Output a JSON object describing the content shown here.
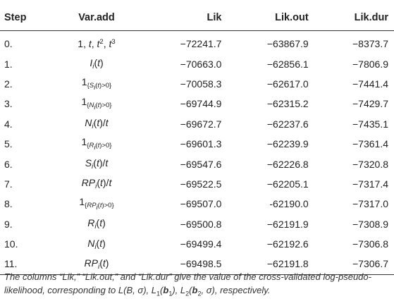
{
  "table": {
    "headers": {
      "step": "Step",
      "var_add": "Var.add",
      "lik": "Lik",
      "lik_out": "Lik.out",
      "lik_dur": "Lik.dur"
    },
    "rows": [
      {
        "step": "0.",
        "var_label": "1, t, t², t³",
        "lik": "−72241.7",
        "lik_out": "−63867.9",
        "lik_dur": "−8373.7"
      },
      {
        "step": "1.",
        "var_label": "I_i(t)",
        "lik": "−70663.0",
        "lik_out": "−62856.1",
        "lik_dur": "−7806.9"
      },
      {
        "step": "2.",
        "var_label": "1_{S_i(t)>0}",
        "lik": "−70058.3",
        "lik_out": "−62617.0",
        "lik_dur": "−7441.4"
      },
      {
        "step": "3.",
        "var_label": "1_{N_i(t)>0}",
        "lik": "−69744.9",
        "lik_out": "−62315.2",
        "lik_dur": "−7429.7"
      },
      {
        "step": "4.",
        "var_label": "N_i(t)/t",
        "lik": "−69672.7",
        "lik_out": "−62237.6",
        "lik_dur": "−7435.1"
      },
      {
        "step": "5.",
        "var_label": "1_{R_i(t)>0}",
        "lik": "−69601.3",
        "lik_out": "−62239.9",
        "lik_dur": "−7361.4"
      },
      {
        "step": "6.",
        "var_label": "S_i(t)/t",
        "lik": "−69547.6",
        "lik_out": "−62226.8",
        "lik_dur": "−7320.8"
      },
      {
        "step": "7.",
        "var_label": "RP_i(t)/t",
        "lik": "−69522.5",
        "lik_out": "−62205.1",
        "lik_dur": "−7317.4"
      },
      {
        "step": "8.",
        "var_label": "1_{RP_i(t)>0}",
        "lik": "−69507.0",
        "lik_out": "-62190.0",
        "lik_dur": "−7317.0"
      },
      {
        "step": "9.",
        "var_label": "R_i(t)",
        "lik": "−69500.8",
        "lik_out": "−62191.9",
        "lik_dur": "−7308.9"
      },
      {
        "step": "10.",
        "var_label": "N_i(t)",
        "lik": "−69499.4",
        "lik_out": "−62192.6",
        "lik_dur": "−7306.8"
      },
      {
        "step": "11.",
        "var_label": "RP_i(t)",
        "lik": "−69498.5",
        "lik_out": "−62191.8",
        "lik_dur": "−7306.7"
      }
    ]
  },
  "caption": "The columns “Lik,” “Lik.out,” and “Lik.dur” give the value of the cross-validated log-pseudo-likelihood, corresponding to L(B, σ), L₁(b₁), L₂(b₂, σ), respectively.",
  "colors": {
    "text": "#222222",
    "rule": "#333333",
    "background": "#ffffff"
  }
}
